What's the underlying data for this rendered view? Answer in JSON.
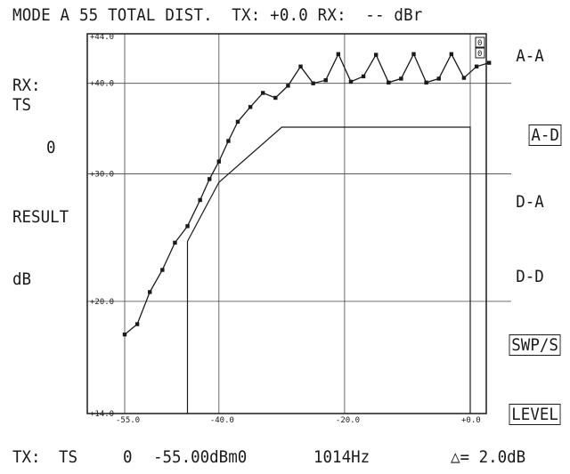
{
  "header": {
    "mode": "MODE A",
    "mode_num": "55",
    "measurement": "TOTAL DIST.",
    "tx_label": "TX:",
    "tx_value": "+0.0",
    "rx_label": "RX:",
    "rx_value": "--",
    "unit": "dBr"
  },
  "left_panel": {
    "rx_label": "RX:",
    "ts_label": "TS",
    "ts_value": "0",
    "result_label": "RESULT",
    "db_label": "dB"
  },
  "softkeys": [
    {
      "label": "A-A",
      "boxed": false
    },
    {
      "label": "A-D",
      "boxed": true
    },
    {
      "label": "D-A",
      "boxed": false
    },
    {
      "label": "D-D",
      "boxed": false
    },
    {
      "label": "SWP/S",
      "boxed": true
    },
    {
      "label": "LEVEL",
      "boxed": true
    }
  ],
  "footer": {
    "tx_label": "TX:",
    "ts_label": "TS",
    "ts_value": "0",
    "level": "-55.00dBm0",
    "frequency": "1014Hz",
    "delta": "△= 2.0dB"
  },
  "plot_badges": [
    "0",
    "0"
  ],
  "chart_data": {
    "type": "line",
    "x_ticks": [
      "-55.0",
      "-40.0",
      "-20.0",
      "+0.0"
    ],
    "y_ticks": [
      "+44.0",
      "+40.0",
      "+30.0",
      "+20.0",
      "+14.0"
    ],
    "xlim": [
      -55,
      3
    ],
    "ylim": [
      14,
      44
    ],
    "y_scale": "log",
    "grid": true,
    "series": [
      {
        "x": [
          -55,
          -53,
          -51,
          -49,
          -47,
          -45,
          -43,
          -41.5,
          -40,
          -38.5,
          -37,
          -35,
          -33,
          -31,
          -29,
          -27,
          -25,
          -23,
          -21,
          -19,
          -17,
          -15,
          -13,
          -11,
          -9,
          -7,
          -5,
          -3,
          -1,
          1,
          3
        ],
        "y": [
          18.0,
          18.6,
          20.6,
          22.1,
          24.1,
          25.4,
          27.6,
          29.5,
          31.2,
          33.3,
          35.4,
          37.1,
          38.8,
          38.2,
          39.7,
          42.2,
          40.0,
          40.4,
          43.9,
          40.2,
          40.9,
          43.8,
          40.1,
          40.6,
          43.9,
          40.1,
          40.6,
          43.9,
          40.7,
          42.2,
          42.7
        ]
      },
      {
        "x": [
          -45,
          -45,
          -40,
          -30,
          0,
          0
        ],
        "y": [
          14,
          24.2,
          29.2,
          34.8,
          34.8,
          14
        ]
      }
    ]
  }
}
